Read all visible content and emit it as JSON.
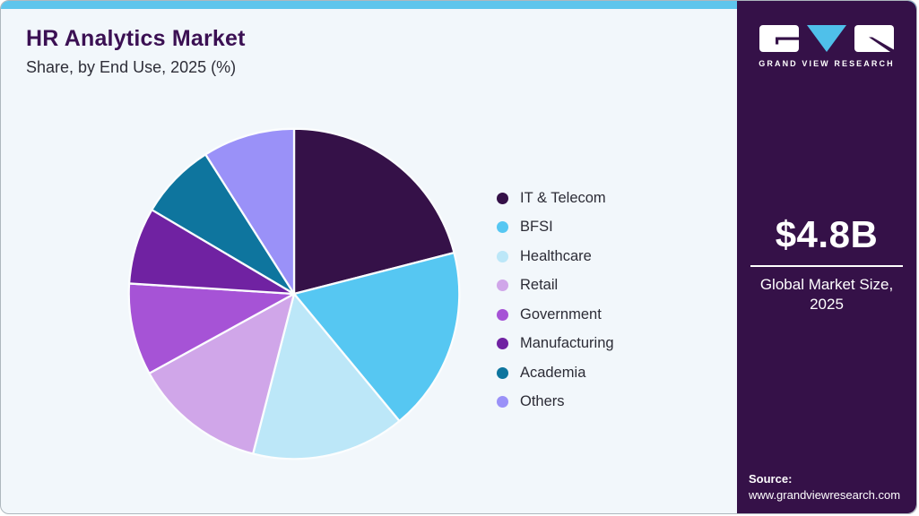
{
  "header": {
    "title": "HR Analytics Market",
    "subtitle": "Share, by End Use, 2025 (%)"
  },
  "chart_data": {
    "type": "pie",
    "title": "HR Analytics Market Share, by End Use, 2025 (%)",
    "categories": [
      "IT & Telecom",
      "BFSI",
      "Healthcare",
      "Retail",
      "Government",
      "Manufacturing",
      "Academia",
      "Others"
    ],
    "values": [
      21,
      18,
      15,
      13,
      9,
      7.5,
      7.5,
      9
    ],
    "unit": "%",
    "colors": [
      "#351148",
      "#56c7f2",
      "#bce7f8",
      "#d0a6e9",
      "#a653d6",
      "#7022a2",
      "#0e759e",
      "#9a91f8"
    ],
    "legend_position": "right",
    "start_angle_deg": 0,
    "direction": "clockwise",
    "slice_border_color": "#fbfdfe"
  },
  "sidebar": {
    "brand_name": "GRAND VIEW RESEARCH",
    "market_size": "$4.8B",
    "market_size_label": "Global Market Size, 2025",
    "source_label": "Source:",
    "source_url": "www.grandviewresearch.com"
  },
  "colors": {
    "accent": "#5ec5ec",
    "card_bg": "#f2f7fb",
    "title": "#3b1053",
    "sidebar_bg": "#351148",
    "logo_triangle": "#4fc0ea"
  }
}
